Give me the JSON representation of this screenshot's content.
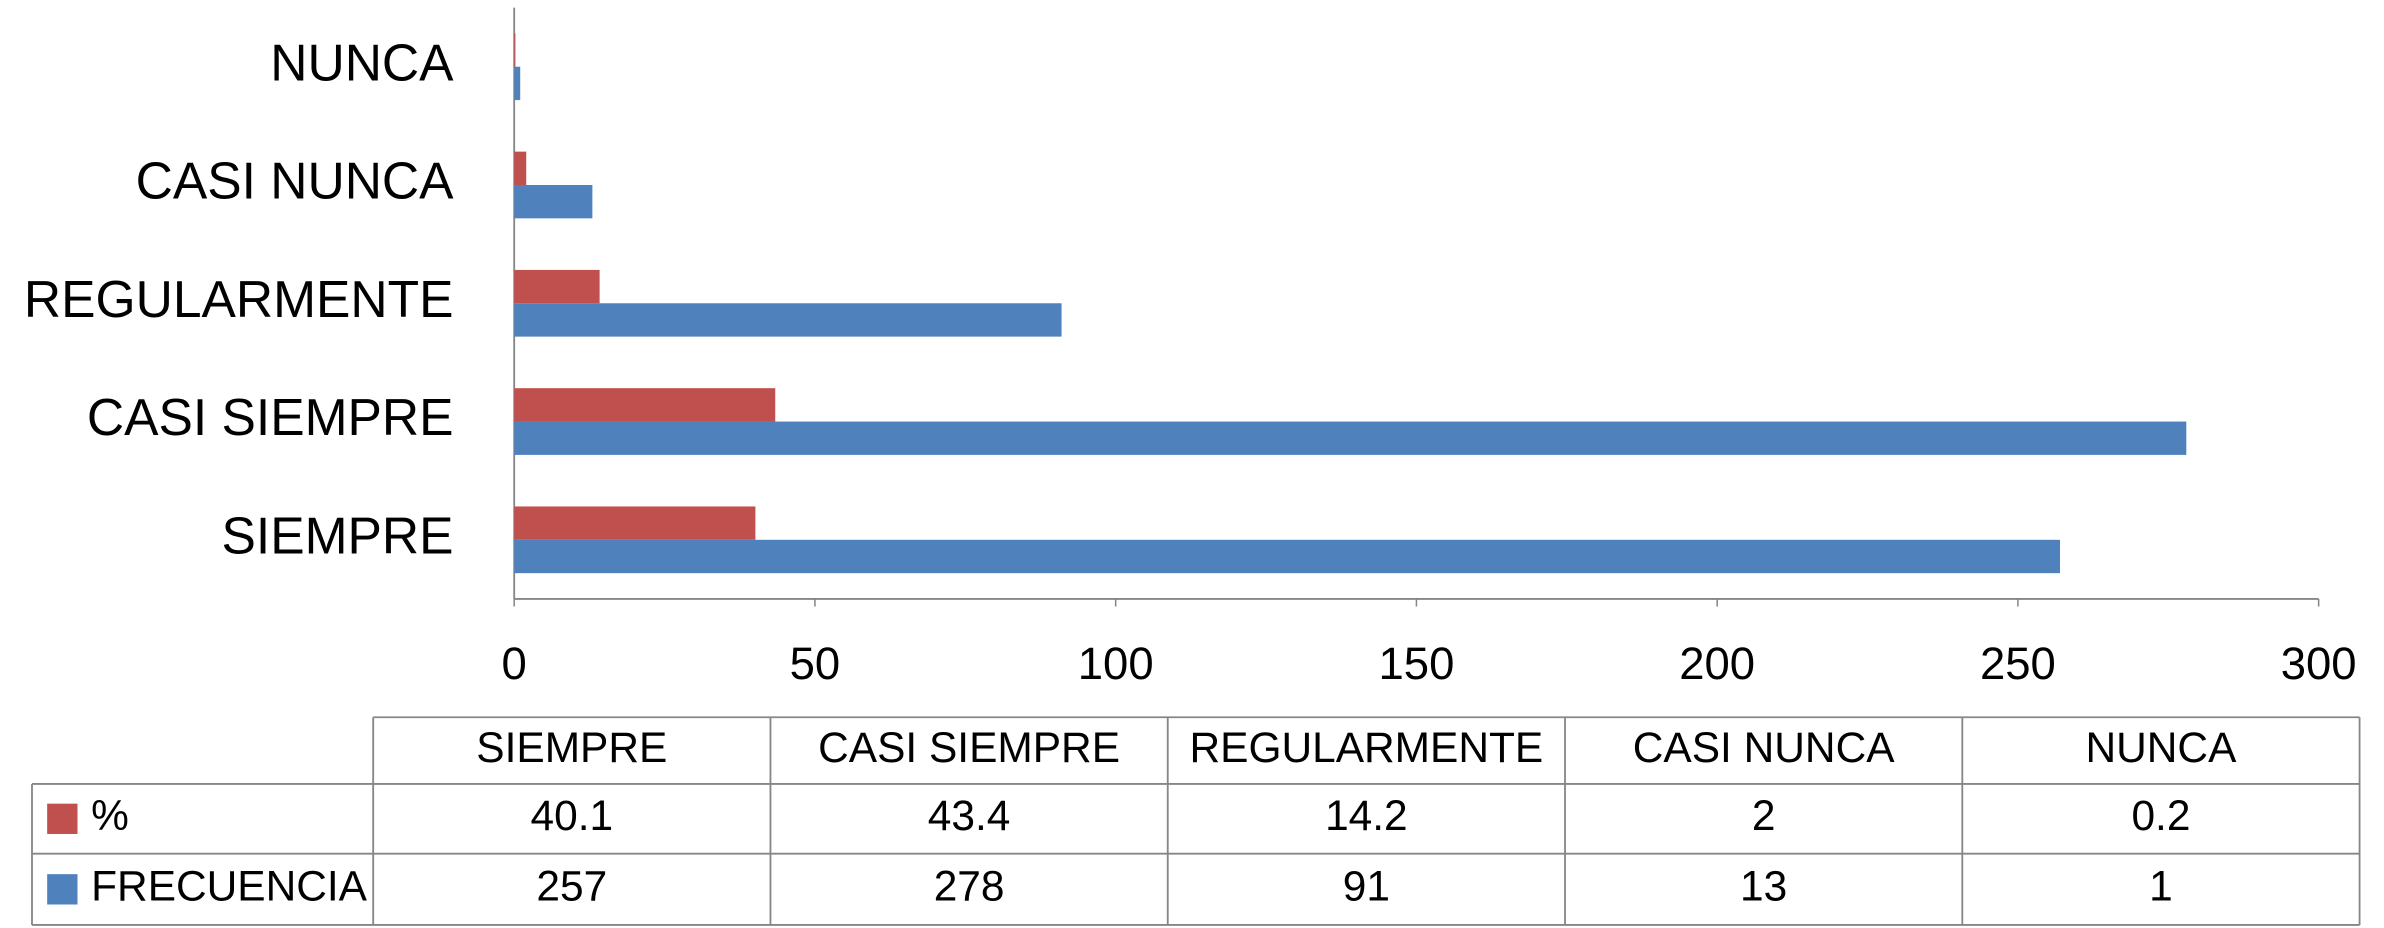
{
  "chart_data": {
    "type": "bar",
    "orientation": "horizontal",
    "categories": [
      "SIEMPRE",
      "CASI SIEMPRE",
      "REGULARMENTE",
      "CASI NUNCA",
      "NUNCA"
    ],
    "series": [
      {
        "name": "%",
        "color": "#c0504d",
        "values": [
          40.1,
          43.4,
          14.2,
          2,
          0.2
        ]
      },
      {
        "name": "FRECUENCIA",
        "color": "#4f81bd",
        "values": [
          257,
          278,
          91,
          13,
          1
        ]
      }
    ],
    "xlim": [
      0,
      300
    ],
    "xticks": [
      0,
      50,
      100,
      150,
      200,
      250,
      300
    ],
    "grid": false,
    "data_table": true
  }
}
